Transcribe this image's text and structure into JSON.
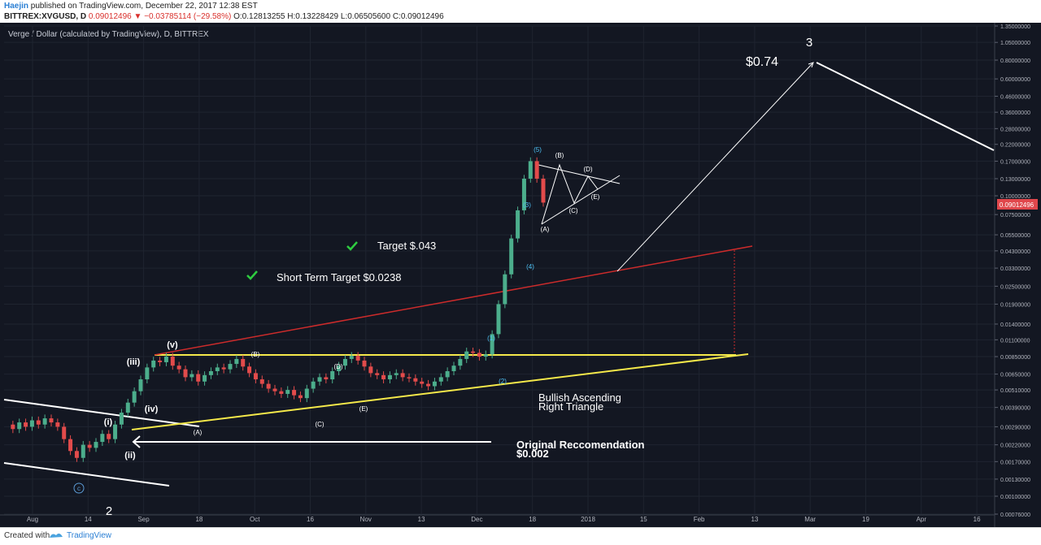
{
  "header": {
    "author": "Haejin",
    "published": "published on TradingView.com, December 22, 2017 12:38 EST",
    "symbol": "BITTREX:XVGUSD, D",
    "change": "0.09012496 ▼ −0.03785114 (−29.58%)",
    "ohlc": "O:0.12813255 H:0.13228429 L:0.06505600 C:0.09012496"
  },
  "chart_title": "Verge / Dollar (calculated by TradingView), D, BITTREX",
  "footer": {
    "created_with": "Created with",
    "brand": "TradingView"
  },
  "chart_data": {
    "type": "candlestick",
    "scale": "log",
    "symbol": "XVGUSD",
    "ylim": [
      0.00076,
      1.35
    ],
    "y_ticks": [
      "1.35000000",
      "1.05000000",
      "0.80000000",
      "0.60000000",
      "0.46000000",
      "0.36000000",
      "0.28000000",
      "0.22000000",
      "0.17000000",
      "0.13000000",
      "0.10000000",
      "0.07500000",
      "0.05500000",
      "0.04300000",
      "0.03300000",
      "0.02500000",
      "0.01900000",
      "0.01400000",
      "0.01100000",
      "0.00850000",
      "0.00650000",
      "0.00510000",
      "0.00390000",
      "0.00290000",
      "0.00220000",
      "0.00170000",
      "0.00130000",
      "0.00100000",
      "0.00076000"
    ],
    "x_ticks": [
      "Aug",
      "14",
      "Sep",
      "18",
      "Oct",
      "16",
      "Nov",
      "13",
      "Dec",
      "18",
      "2018",
      "15",
      "Feb",
      "13",
      "Mar",
      "19",
      "Apr",
      "16"
    ],
    "last_price": "0.09012496",
    "price_path": [
      0.003,
      0.0028,
      0.0031,
      0.0029,
      0.0032,
      0.003,
      0.0033,
      0.0031,
      0.0029,
      0.0024,
      0.002,
      0.0018,
      0.0022,
      0.0021,
      0.0023,
      0.0026,
      0.0024,
      0.003,
      0.0036,
      0.0042,
      0.005,
      0.006,
      0.0072,
      0.008,
      0.0078,
      0.0085,
      0.0074,
      0.007,
      0.0062,
      0.0065,
      0.0058,
      0.0064,
      0.0068,
      0.0072,
      0.007,
      0.0076,
      0.0082,
      0.0073,
      0.0066,
      0.006,
      0.0056,
      0.0052,
      0.005,
      0.0048,
      0.0051,
      0.0047,
      0.0045,
      0.0052,
      0.0058,
      0.0062,
      0.006,
      0.0068,
      0.0074,
      0.0082,
      0.0086,
      0.008,
      0.0073,
      0.0066,
      0.0064,
      0.006,
      0.0064,
      0.0066,
      0.0062,
      0.0061,
      0.0058,
      0.0056,
      0.0054,
      0.0058,
      0.0062,
      0.0068,
      0.0074,
      0.0082,
      0.0092,
      0.009,
      0.0085,
      0.0088,
      0.012,
      0.019,
      0.03,
      0.052,
      0.08,
      0.13,
      0.17,
      0.13,
      0.0901
    ],
    "annotations": {
      "target_1": "Target $.043",
      "target_2": "Short Term Target $0.0238",
      "triangle": "Bullish Ascending",
      "triangle2": "Right Triangle",
      "original1": "Original Reccomendation",
      "original2": "$0.002",
      "projection": "$0.74",
      "wave3": "3",
      "wave2": "2",
      "wave_c": "c",
      "waves_roman": [
        "(i)",
        "(ii)",
        "(iii)",
        "(iv)",
        "(v)"
      ],
      "abc_lower": [
        "(A)",
        "(B)",
        "(C)",
        "(D)",
        "(E)"
      ],
      "waves_small": [
        "(1)",
        "(2)",
        "(3)",
        "(4)",
        "(5)"
      ],
      "abc_triangle": [
        "(A)",
        "(B)",
        "(C)",
        "(D)",
        "(E)"
      ]
    }
  }
}
